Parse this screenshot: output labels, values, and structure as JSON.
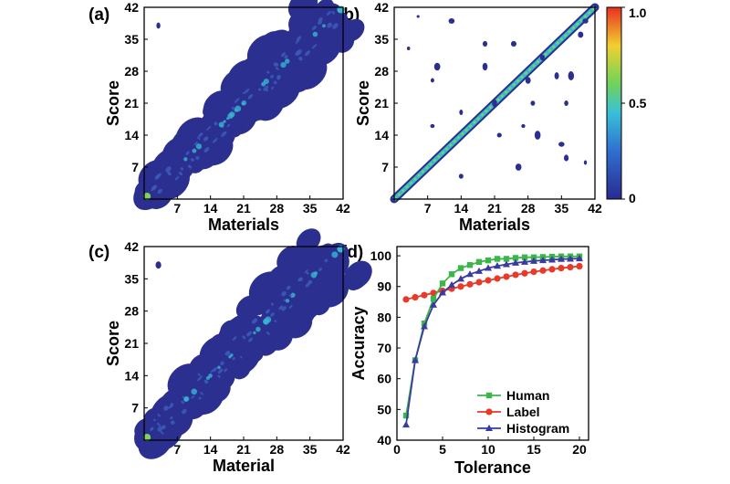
{
  "colors": {
    "contour_dark": "#2b2f8f",
    "contour_mid": "#3a5ab8",
    "contour_hi": "#37b7d0",
    "diag_green": "#7fd35a",
    "human": "#3cb54a",
    "label": "#e83a2a",
    "histogram": "#3a3aa0"
  },
  "chart_data": [
    {
      "panel": "(a)",
      "type": "heatmap",
      "xlabel": "Materials",
      "ylabel": "Score",
      "xlim": [
        0,
        42
      ],
      "ylim": [
        0,
        42
      ],
      "xticks": [
        "7",
        "14",
        "21",
        "28",
        "35",
        "42"
      ],
      "yticks": [
        "7",
        "14",
        "21",
        "28",
        "35",
        "42"
      ],
      "pattern": "broad diagonal band",
      "outliers": [
        [
          3,
          38
        ]
      ]
    },
    {
      "panel": "(b)",
      "type": "heatmap",
      "xlabel": "Materials",
      "ylabel": "Score",
      "xlim": [
        0,
        42
      ],
      "ylim": [
        0,
        42
      ],
      "xticks": [
        "7",
        "14",
        "21",
        "28",
        "35",
        "42"
      ],
      "yticks": [
        "7",
        "14",
        "21",
        "28",
        "35",
        "42"
      ],
      "pattern": "narrow diagonal line",
      "colorbar": {
        "range": [
          0,
          1.0
        ],
        "ticks": [
          "1.0",
          "0.5",
          "0"
        ]
      },
      "outliers": [
        [
          5,
          40
        ],
        [
          3,
          33
        ],
        [
          12,
          39
        ],
        [
          19,
          34
        ],
        [
          25,
          34
        ],
        [
          9,
          29
        ],
        [
          19,
          29
        ],
        [
          31,
          31
        ],
        [
          34,
          27
        ],
        [
          37,
          27
        ],
        [
          36,
          21
        ],
        [
          21,
          21
        ],
        [
          29,
          21
        ],
        [
          8,
          16
        ],
        [
          14,
          19
        ],
        [
          27,
          16
        ],
        [
          30,
          14
        ],
        [
          35,
          12
        ],
        [
          36,
          9
        ],
        [
          40,
          8
        ],
        [
          26,
          7
        ],
        [
          14,
          5
        ],
        [
          8,
          26
        ],
        [
          39,
          36
        ],
        [
          40,
          39
        ],
        [
          22,
          14
        ],
        [
          28,
          26
        ]
      ]
    },
    {
      "panel": "(c)",
      "type": "heatmap",
      "xlabel": "Material",
      "ylabel": "Score",
      "xlim": [
        0,
        42
      ],
      "ylim": [
        0,
        42
      ],
      "xticks": [
        "7",
        "14",
        "21",
        "28",
        "35",
        "42"
      ],
      "yticks": [
        "7",
        "14",
        "21",
        "28",
        "35",
        "42"
      ],
      "pattern": "broad diagonal band",
      "outliers": [
        [
          3,
          38
        ]
      ]
    },
    {
      "panel": "(d)",
      "type": "line",
      "xlabel": "Tolerance",
      "ylabel": "Accuracy",
      "xlim": [
        0,
        21
      ],
      "ylim": [
        40,
        103
      ],
      "xticks": [
        0,
        5,
        10,
        15,
        20
      ],
      "yticks": [
        40,
        50,
        60,
        70,
        80,
        90,
        100
      ],
      "x": [
        1,
        2,
        3,
        4,
        5,
        6,
        7,
        8,
        9,
        10,
        11,
        12,
        13,
        14,
        15,
        16,
        17,
        18,
        19,
        20
      ],
      "series": [
        {
          "name": "Human",
          "marker": "square",
          "values": [
            48,
            66,
            78,
            86,
            91,
            94,
            96,
            97,
            98,
            98.5,
            99,
            99,
            99.3,
            99.5,
            99.5,
            99.6,
            99.7,
            99.8,
            99.8,
            99.8
          ]
        },
        {
          "name": "Label",
          "marker": "circle",
          "values": [
            85.8,
            86.5,
            87.2,
            87.9,
            88.6,
            89.3,
            90,
            90.7,
            91.4,
            92,
            92.6,
            93.2,
            93.8,
            94.3,
            94.8,
            95.2,
            95.6,
            96,
            96.3,
            96.6
          ]
        },
        {
          "name": "Histogram",
          "marker": "triangle",
          "values": [
            45,
            66,
            77,
            84,
            88,
            90.5,
            92.5,
            94,
            95,
            96,
            96.7,
            97.2,
            97.7,
            98,
            98.3,
            98.5,
            98.7,
            98.9,
            99,
            99.1
          ]
        }
      ],
      "legend": "bottom-right"
    }
  ]
}
